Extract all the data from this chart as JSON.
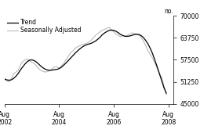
{
  "title": "",
  "ylabel": "no.",
  "ylim": [
    45000,
    70000
  ],
  "yticks": [
    45000,
    51250,
    57500,
    63750,
    70000
  ],
  "xlim_start": 2002.583,
  "xlim_end": 2008.75,
  "xtick_positions": [
    2002.583,
    2004.583,
    2006.583,
    2008.583
  ],
  "xtick_labels": [
    "Aug\n2002",
    "Aug\n2004",
    "Aug\n2006",
    "Aug\n2008"
  ],
  "legend_entries": [
    "Trend",
    "Seasonally Adjusted"
  ],
  "trend_color": "#000000",
  "seasonal_color": "#b0b0b0",
  "background_color": "#ffffff",
  "trend": [
    52000,
    51800,
    51700,
    51800,
    52200,
    52800,
    53600,
    54600,
    55500,
    56300,
    57000,
    57400,
    57500,
    57300,
    56900,
    56300,
    55700,
    55200,
    54800,
    54600,
    54500,
    54600,
    54700,
    54800,
    55000,
    55400,
    56000,
    56600,
    57300,
    58000,
    58700,
    59400,
    60000,
    60600,
    61100,
    61500,
    61800,
    62000,
    62200,
    62500,
    62900,
    63400,
    64000,
    64700,
    65200,
    65600,
    65900,
    66000,
    65900,
    65600,
    65200,
    64700,
    64400,
    64200,
    64200,
    64300,
    64500,
    64700,
    64800,
    64700,
    64400,
    63800,
    63000,
    62000,
    60700,
    59200,
    57400,
    55500,
    53500,
    51500,
    49500,
    48000
  ],
  "seasonal": [
    52500,
    51500,
    51200,
    52000,
    53500,
    54000,
    54500,
    56000,
    57000,
    57500,
    57800,
    57200,
    56800,
    56500,
    55800,
    55000,
    54500,
    54200,
    54000,
    54200,
    54500,
    55000,
    55500,
    55500,
    55200,
    55800,
    56500,
    57500,
    58500,
    59500,
    60000,
    60800,
    61200,
    61500,
    61800,
    62000,
    62200,
    62500,
    63000,
    63800,
    64500,
    65000,
    65500,
    66000,
    66200,
    66500,
    66800,
    65800,
    65500,
    64800,
    64500,
    64000,
    64500,
    64200,
    64500,
    64800,
    65200,
    65000,
    64800,
    64500,
    63800,
    62800,
    61500,
    60000,
    59000,
    58000,
    56500,
    55000,
    53500,
    52500,
    50000,
    47500
  ]
}
